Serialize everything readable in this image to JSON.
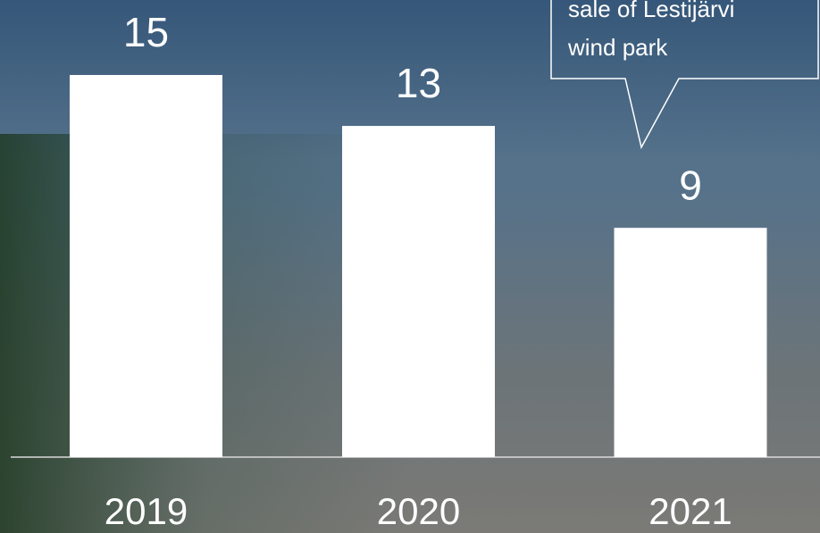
{
  "chart_data": {
    "type": "bar",
    "categories": [
      "2019",
      "2020",
      "2021"
    ],
    "values": [
      15,
      13,
      9
    ],
    "color": "#ffffff",
    "ylim": [
      0,
      15
    ],
    "annotation": [
      "sale of Lestijärvi",
      "wind park"
    ]
  }
}
